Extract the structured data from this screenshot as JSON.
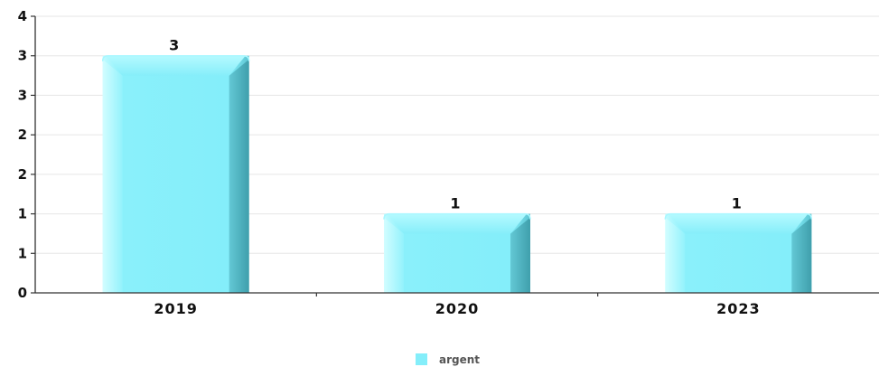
{
  "chart_data": {
    "type": "bar",
    "categories": [
      "2019",
      "2020",
      "2023"
    ],
    "series": [
      {
        "name": "argent",
        "values": [
          3,
          1,
          1
        ],
        "data_labels": [
          "3",
          "1",
          "1"
        ],
        "color": "#84EEFA"
      }
    ],
    "y_ticks": [
      {
        "value": 0,
        "label": "0"
      },
      {
        "value": 0.5,
        "label": "1"
      },
      {
        "value": 1,
        "label": "1"
      },
      {
        "value": 1.5,
        "label": "2"
      },
      {
        "value": 2,
        "label": "2"
      },
      {
        "value": 2.5,
        "label": "3"
      },
      {
        "value": 3,
        "label": "3"
      },
      {
        "value": 3.5,
        "label": "4"
      }
    ],
    "ylim": [
      0,
      3.5
    ],
    "grid": true,
    "legend_position": "bottom-center",
    "title": "",
    "xlabel": "",
    "ylabel": ""
  }
}
